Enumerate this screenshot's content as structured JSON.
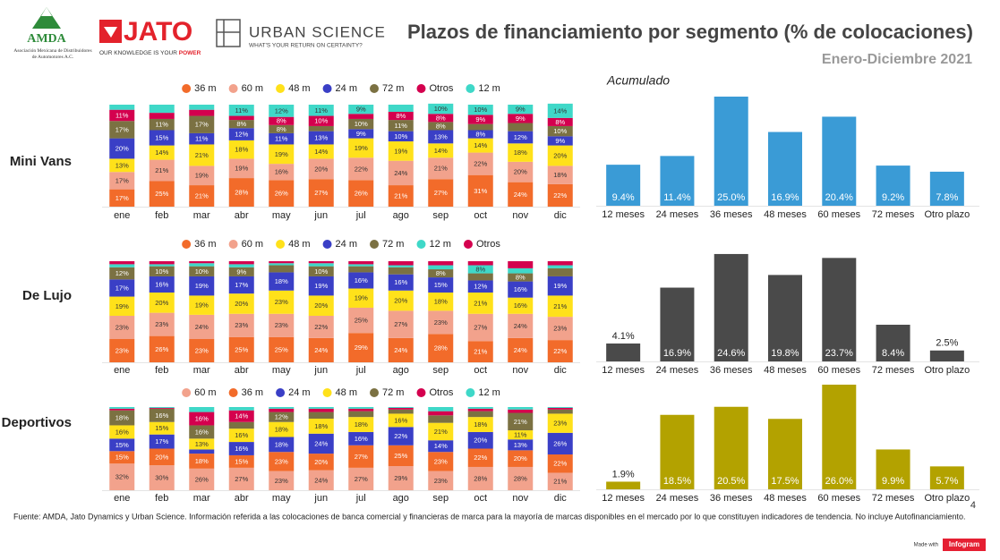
{
  "header": {
    "amda": "AMDA",
    "amda_name": "Asociación Mexicana de Distribuidores de Automotores A.C.",
    "jato": "JATO",
    "jato_tagline_1": "OUR KNOWLEDGE IS YOUR",
    "jato_tagline_2": "POWER",
    "urban": "URBAN SCIENCE",
    "urban_tagline": "WHAT'S YOUR RETURN ON CERTAINTY?",
    "title": "Plazos de financiamiento por segmento (% de colocaciones)",
    "subtitle": "Enero-Diciembre  2021"
  },
  "chart_data": [
    {
      "type": "stacked_bar",
      "label": "Mini Vans",
      "ylim": [
        0,
        100
      ],
      "categories": [
        "ene",
        "feb",
        "mar",
        "abr",
        "may",
        "jun",
        "jul",
        "ago",
        "sep",
        "oct",
        "nov",
        "dic"
      ],
      "series": [
        {
          "name": "36 m",
          "color": "#f26b2a",
          "values": [
            17,
            25,
            21,
            28,
            26,
            27,
            26,
            21,
            27,
            31,
            24,
            22
          ],
          "value_labels": [
            "17%",
            "25%",
            "21%",
            "28%",
            "26%",
            "27%",
            "26%",
            "21%",
            "27%",
            "31%",
            "24%",
            "22%"
          ]
        },
        {
          "name": "60 m",
          "color": "#f2a28c",
          "values": [
            17,
            21,
            19,
            19,
            16,
            20,
            22,
            24,
            21,
            22,
            20,
            18
          ],
          "value_labels": [
            "17%",
            "21%",
            "19%",
            "19%",
            "16%",
            "20%",
            "22%",
            "24%",
            "21%",
            "22%",
            "20%",
            "18%"
          ]
        },
        {
          "name": "48 m",
          "color": "#ffe11a",
          "values": [
            13,
            14,
            21,
            18,
            19,
            14,
            19,
            19,
            14,
            14,
            18,
            20
          ],
          "value_labels": [
            "13%",
            "14%",
            "21%",
            "18%",
            "19%",
            "14%",
            "19%",
            "19%",
            "14%",
            "14%",
            "18%",
            "20%"
          ]
        },
        {
          "name": "24 m",
          "color": "#3a3fc6",
          "values": [
            20,
            15,
            11,
            12,
            11,
            13,
            9,
            10,
            13,
            8,
            12,
            9
          ],
          "value_labels": [
            "20%",
            "15%",
            "11%",
            "12%",
            "11%",
            "13%",
            "9%",
            "10%",
            "13%",
            "8%",
            "12%",
            "9%"
          ]
        },
        {
          "name": "72 m",
          "color": "#7b7142",
          "values": [
            17,
            11,
            17,
            8,
            8,
            5,
            10,
            11,
            8,
            6,
            8,
            10
          ],
          "value_labels": [
            "17%",
            "11%",
            "17%",
            "8%",
            "8%",
            null,
            "10%",
            "11%",
            "8%",
            null,
            null,
            "10%"
          ]
        },
        {
          "name": "Otros",
          "color": "#d4004e",
          "values": [
            11,
            6,
            6,
            4,
            8,
            10,
            5,
            8,
            8,
            9,
            9,
            8
          ],
          "value_labels": [
            "11%",
            null,
            null,
            null,
            "8%",
            "10%",
            null,
            "8%",
            "8%",
            "9%",
            "9%",
            "8%"
          ]
        },
        {
          "name": "12 m",
          "color": "#3fd8c8",
          "values": [
            5,
            8,
            5,
            11,
            12,
            11,
            9,
            7,
            10,
            10,
            9,
            14
          ],
          "value_labels": [
            null,
            null,
            null,
            "11%",
            "12%",
            "11%",
            "9%",
            null,
            "10%",
            "10%",
            "9%",
            "14%"
          ]
        }
      ]
    },
    {
      "type": "bar",
      "title": "Acumulado",
      "color": "#3a9bd6",
      "ylim": [
        0,
        25
      ],
      "categories": [
        "12 meses",
        "24 meses",
        "36 meses",
        "48 meses",
        "60 meses",
        "72 meses",
        "Otro plazo"
      ],
      "values": [
        9.4,
        11.4,
        25.0,
        16.9,
        20.4,
        9.2,
        7.8
      ],
      "value_labels": [
        "9.4%",
        "11.4%",
        "25.0%",
        "16.9%",
        "20.4%",
        "9.2%",
        "7.8%"
      ]
    },
    {
      "type": "stacked_bar",
      "label": "De Lujo",
      "ylim": [
        0,
        100
      ],
      "categories": [
        "ene",
        "feb",
        "mar",
        "abr",
        "may",
        "jun",
        "jul",
        "ago",
        "sep",
        "oct",
        "nov",
        "dic"
      ],
      "series": [
        {
          "name": "36 m",
          "color": "#f26b2a",
          "values": [
            23,
            26,
            23,
            25,
            25,
            24,
            29,
            24,
            28,
            21,
            24,
            22
          ],
          "value_labels": [
            "23%",
            "26%",
            "23%",
            "25%",
            "25%",
            "24%",
            "29%",
            "24%",
            "28%",
            "21%",
            "24%",
            "22%"
          ]
        },
        {
          "name": "60 m",
          "color": "#f2a28c",
          "values": [
            23,
            23,
            24,
            23,
            23,
            22,
            25,
            27,
            23,
            27,
            24,
            23
          ],
          "value_labels": [
            "23%",
            "23%",
            "24%",
            "23%",
            "23%",
            "22%",
            "25%",
            "27%",
            "23%",
            "27%",
            "24%",
            "23%"
          ]
        },
        {
          "name": "48 m",
          "color": "#ffe11a",
          "values": [
            19,
            20,
            19,
            20,
            23,
            20,
            19,
            20,
            18,
            21,
            16,
            21
          ],
          "value_labels": [
            "19%",
            "20%",
            "19%",
            "20%",
            "23%",
            "20%",
            "19%",
            "20%",
            "18%",
            "21%",
            "16%",
            "21%"
          ]
        },
        {
          "name": "24 m",
          "color": "#3a3fc6",
          "values": [
            17,
            16,
            19,
            17,
            18,
            19,
            16,
            16,
            15,
            12,
            16,
            19
          ],
          "value_labels": [
            "17%",
            "16%",
            "19%",
            "17%",
            "18%",
            "19%",
            "16%",
            "16%",
            "15%",
            "12%",
            "16%",
            "19%"
          ]
        },
        {
          "name": "72 m",
          "color": "#7b7142",
          "values": [
            12,
            10,
            10,
            9,
            7,
            10,
            6,
            7,
            8,
            7,
            8,
            8
          ],
          "value_labels": [
            "12%",
            "10%",
            "10%",
            "9%",
            null,
            "10%",
            null,
            null,
            "8%",
            null,
            "8%",
            null
          ]
        },
        {
          "name": "12 m",
          "color": "#3fd8c8",
          "values": [
            3,
            2,
            3,
            3,
            2,
            3,
            2,
            2,
            4,
            8,
            5,
            3
          ],
          "value_labels": [
            null,
            null,
            null,
            null,
            null,
            null,
            null,
            null,
            null,
            "8%",
            null,
            null
          ]
        },
        {
          "name": "Otros",
          "color": "#d4004e",
          "values": [
            3,
            3,
            2,
            3,
            2,
            2,
            3,
            4,
            4,
            4,
            7,
            4
          ],
          "value_labels": [
            null,
            null,
            null,
            null,
            null,
            null,
            null,
            null,
            null,
            null,
            null,
            null
          ]
        }
      ]
    },
    {
      "type": "bar",
      "color": "#4a4a4a",
      "ylim": [
        0,
        25
      ],
      "categories": [
        "12 meses",
        "24 meses",
        "36 meses",
        "48 meses",
        "60 meses",
        "72 meses",
        "Otro plazo"
      ],
      "values": [
        4.1,
        16.9,
        24.6,
        19.8,
        23.7,
        8.4,
        2.5
      ],
      "value_labels": [
        "4.1%",
        "16.9%",
        "24.6%",
        "19.8%",
        "23.7%",
        "8.4%",
        "2.5%"
      ]
    },
    {
      "type": "stacked_bar",
      "label": "Deportivos",
      "ylim": [
        0,
        100
      ],
      "categories": [
        "ene",
        "feb",
        "mar",
        "abr",
        "may",
        "jun",
        "jul",
        "ago",
        "sep",
        "oct",
        "nov",
        "dic"
      ],
      "series": [
        {
          "name": "60 m",
          "color": "#f2a28c",
          "values": [
            32,
            30,
            26,
            27,
            23,
            24,
            27,
            29,
            23,
            28,
            28,
            21
          ],
          "value_labels": [
            "32%",
            "30%",
            "26%",
            "27%",
            "23%",
            "24%",
            "27%",
            "29%",
            "23%",
            "28%",
            "28%",
            "21%"
          ]
        },
        {
          "name": "36 m",
          "color": "#f26b2a",
          "values": [
            15,
            20,
            18,
            15,
            23,
            20,
            27,
            25,
            23,
            22,
            20,
            22
          ],
          "value_labels": [
            "15%",
            "20%",
            "18%",
            "15%",
            "23%",
            "20%",
            "27%",
            "25%",
            "23%",
            "22%",
            "20%",
            "22%"
          ]
        },
        {
          "name": "24 m",
          "color": "#3a3fc6",
          "values": [
            15,
            17,
            5,
            16,
            18,
            24,
            16,
            22,
            14,
            20,
            13,
            26
          ],
          "value_labels": [
            "15%",
            "17%",
            null,
            "16%",
            "18%",
            "24%",
            "16%",
            "22%",
            "14%",
            "20%",
            "13%",
            "26%"
          ]
        },
        {
          "name": "48 m",
          "color": "#ffe11a",
          "values": [
            16,
            15,
            13,
            16,
            18,
            18,
            18,
            16,
            21,
            18,
            11,
            23
          ],
          "value_labels": [
            "16%",
            "15%",
            "13%",
            "16%",
            "18%",
            "18%",
            "18%",
            "16%",
            "21%",
            "18%",
            "11%",
            "23%"
          ]
        },
        {
          "name": "72 m",
          "color": "#7b7142",
          "values": [
            18,
            16,
            16,
            8,
            12,
            8,
            7,
            5,
            9,
            7,
            21,
            5
          ],
          "value_labels": [
            "18%",
            "16%",
            "16%",
            null,
            "12%",
            null,
            null,
            null,
            null,
            null,
            "21%",
            null
          ]
        },
        {
          "name": "Otros",
          "color": "#d4004e",
          "values": [
            2,
            1,
            16,
            14,
            4,
            4,
            3,
            2,
            5,
            3,
            4,
            2
          ],
          "value_labels": [
            null,
            null,
            "16%",
            "14%",
            null,
            null,
            null,
            null,
            null,
            null,
            null,
            null
          ]
        },
        {
          "name": "12 m",
          "color": "#3fd8c8",
          "values": [
            2,
            1,
            6,
            4,
            2,
            2,
            2,
            1,
            5,
            2,
            3,
            1
          ],
          "value_labels": [
            null,
            null,
            null,
            null,
            null,
            null,
            null,
            null,
            null,
            null,
            null,
            null
          ]
        }
      ]
    },
    {
      "type": "bar",
      "color": "#b3a200",
      "ylim": [
        0,
        26
      ],
      "categories": [
        "12 meses",
        "24 meses",
        "36 meses",
        "48 meses",
        "60 meses",
        "72 meses",
        "Otro plazo"
      ],
      "values": [
        1.9,
        18.5,
        20.5,
        17.5,
        26.0,
        9.9,
        5.7
      ],
      "value_labels": [
        "1.9%",
        "18.5%",
        "20.5%",
        "17.5%",
        "26.0%",
        "9.9%",
        "5.7%"
      ]
    }
  ],
  "page_number": "4",
  "source": "Fuente: AMDA, Jato Dynamics y Urban Science. Información referida a las colocaciones de banca comercial y financieras de marca para la mayoría de marcas disponibles en el mercado por lo que constituyen indicadores de tendencia. No incluye Autofinanciamiento.",
  "made_with": "Made with",
  "infogram": "Infogram"
}
